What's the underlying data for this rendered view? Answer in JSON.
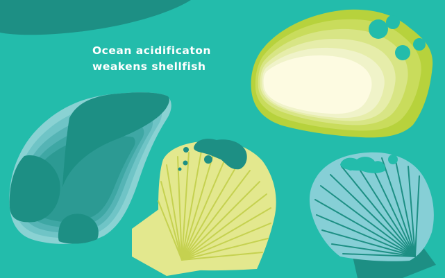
{
  "headline": {
    "line1": "Ocean acidificaton",
    "line2": "weakens shellfish"
  },
  "colors": {
    "background": "#23bcab",
    "corner_arc": "#1d8f84",
    "green_shell": [
      "#b7d23c",
      "#c9dc5c",
      "#d8e585",
      "#e6edaa",
      "#f0f3c9",
      "#fdfbe1"
    ],
    "blue_oyster": [
      "#1d8f84",
      "#2c9a93",
      "#3ea7a4",
      "#55b4b5",
      "#6fc4c6",
      "#8ad2d3"
    ],
    "yellow_scallop": "#e3e88e",
    "yellow_scallop_lines": "#c5d150",
    "blue_scallop": "#86cfd6",
    "blue_scallop_lines": "#1d8f84",
    "eroded_spots": "#1d8f84"
  },
  "icons": [
    "corner-arc",
    "green-oyster-shell-icon",
    "blue-oyster-shell-icon",
    "yellow-scallop-shell-icon",
    "blue-scallop-shell-icon"
  ]
}
